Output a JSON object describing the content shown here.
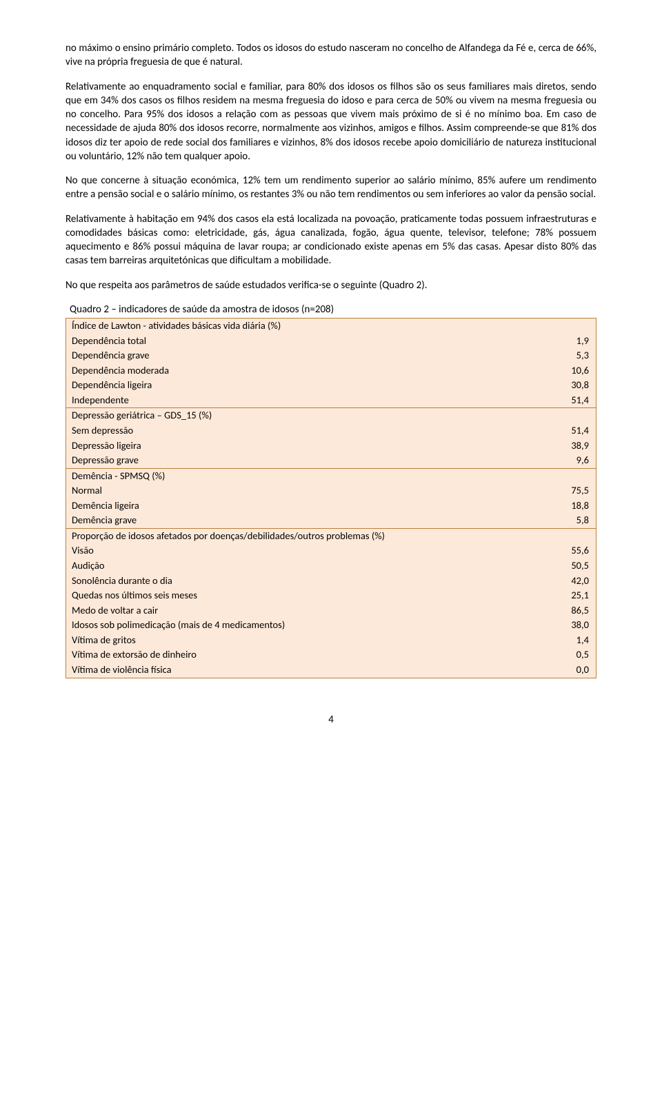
{
  "paragraphs": {
    "p1": "no máximo o ensino primário completo. Todos os idosos do estudo nasceram no concelho de Alfandega da Fé e, cerca de 66%, vive na própria freguesia de que é natural.",
    "p2": "Relativamente ao enquadramento social e familiar, para 80% dos idosos os filhos são os seus familiares mais diretos, sendo que em 34% dos casos os filhos residem na mesma freguesia do idoso e para cerca de 50% ou vivem na mesma freguesia ou no concelho. Para 95% dos idosos a relação com as pessoas que vivem mais próximo de si é no mínimo boa. Em caso de necessidade de ajuda 80% dos idosos recorre, normalmente aos vizinhos, amigos e filhos. Assim compreende-se que 81% dos idosos diz ter apoio de rede social dos familiares e vizinhos, 8% dos idosos recebe apoio domiciliário de natureza institucional ou voluntário, 12% não tem qualquer apoio.",
    "p3": "No que concerne à situação económica, 12% tem um rendimento superior ao salário mínimo, 85% aufere um rendimento entre a pensão social e o salário mínimo, os restantes 3% ou não tem rendimentos ou sem inferiores ao valor da pensão social.",
    "p4": "Relativamente à habitação em 94% dos casos ela está localizada na povoação, praticamente todas possuem infraestruturas e comodidades básicas como: eletricidade, gás, água canalizada, fogão, água quente, televisor, telefone; 78% possuem aquecimento e 86% possui máquina de lavar roupa; ar condicionado existe apenas em 5% das casas. Apesar disto 80% das casas tem barreiras arquitetónicas que dificultam a mobilidade.",
    "p5": "No que respeita aos parâmetros de saúde estudados verifica-se o seguinte (Quadro 2)."
  },
  "table": {
    "caption": "Quadro 2 – indicadores de saúde da amostra de idosos (n=208)",
    "background": "#fde9d9",
    "border_color": "#b97f3b",
    "sections": [
      {
        "header": "Índice de Lawton - atividades básicas vida diária (%)",
        "rows": [
          {
            "label": "Dependência total",
            "value": "1,9"
          },
          {
            "label": "Dependência grave",
            "value": "5,3"
          },
          {
            "label": "Dependência moderada",
            "value": "10,6"
          },
          {
            "label": "Dependência ligeira",
            "value": "30,8"
          },
          {
            "label": "Independente",
            "value": "51,4"
          }
        ]
      },
      {
        "header": "Depressão geriátrica – GDS_15 (%)",
        "rows": [
          {
            "label": "Sem depressão",
            "value": "51,4"
          },
          {
            "label": "Depressão ligeira",
            "value": "38,9"
          },
          {
            "label": "Depressão grave",
            "value": "9,6"
          }
        ]
      },
      {
        "header": "Demência - SPMSQ  (%)",
        "rows": [
          {
            "label": "Normal",
            "value": "75,5"
          },
          {
            "label": "Demência ligeira",
            "value": "18,8"
          },
          {
            "label": "Demência grave",
            "value": "5,8"
          }
        ]
      },
      {
        "header": "Proporção de idosos afetados por doenças/debilidades/outros problemas (%)",
        "rows": [
          {
            "label": "Visão",
            "value": "55,6"
          },
          {
            "label": "Audição",
            "value": "50,5"
          },
          {
            "label": "Sonolência durante o dia",
            "value": "42,0"
          },
          {
            "label": "Quedas nos últimos seis meses",
            "value": "25,1"
          },
          {
            "label": "Medo de voltar a cair",
            "value": "86,5"
          },
          {
            "label": "Idosos sob polimedicação (mais de 4 medicamentos)",
            "value": "38,0"
          },
          {
            "label": "Vítima de gritos",
            "value": "1,4"
          },
          {
            "label": "Vítima de extorsão de dinheiro",
            "value": "0,5"
          },
          {
            "label": "Vítima de violência física",
            "value": "0,0"
          }
        ]
      }
    ]
  },
  "page_number": "4"
}
